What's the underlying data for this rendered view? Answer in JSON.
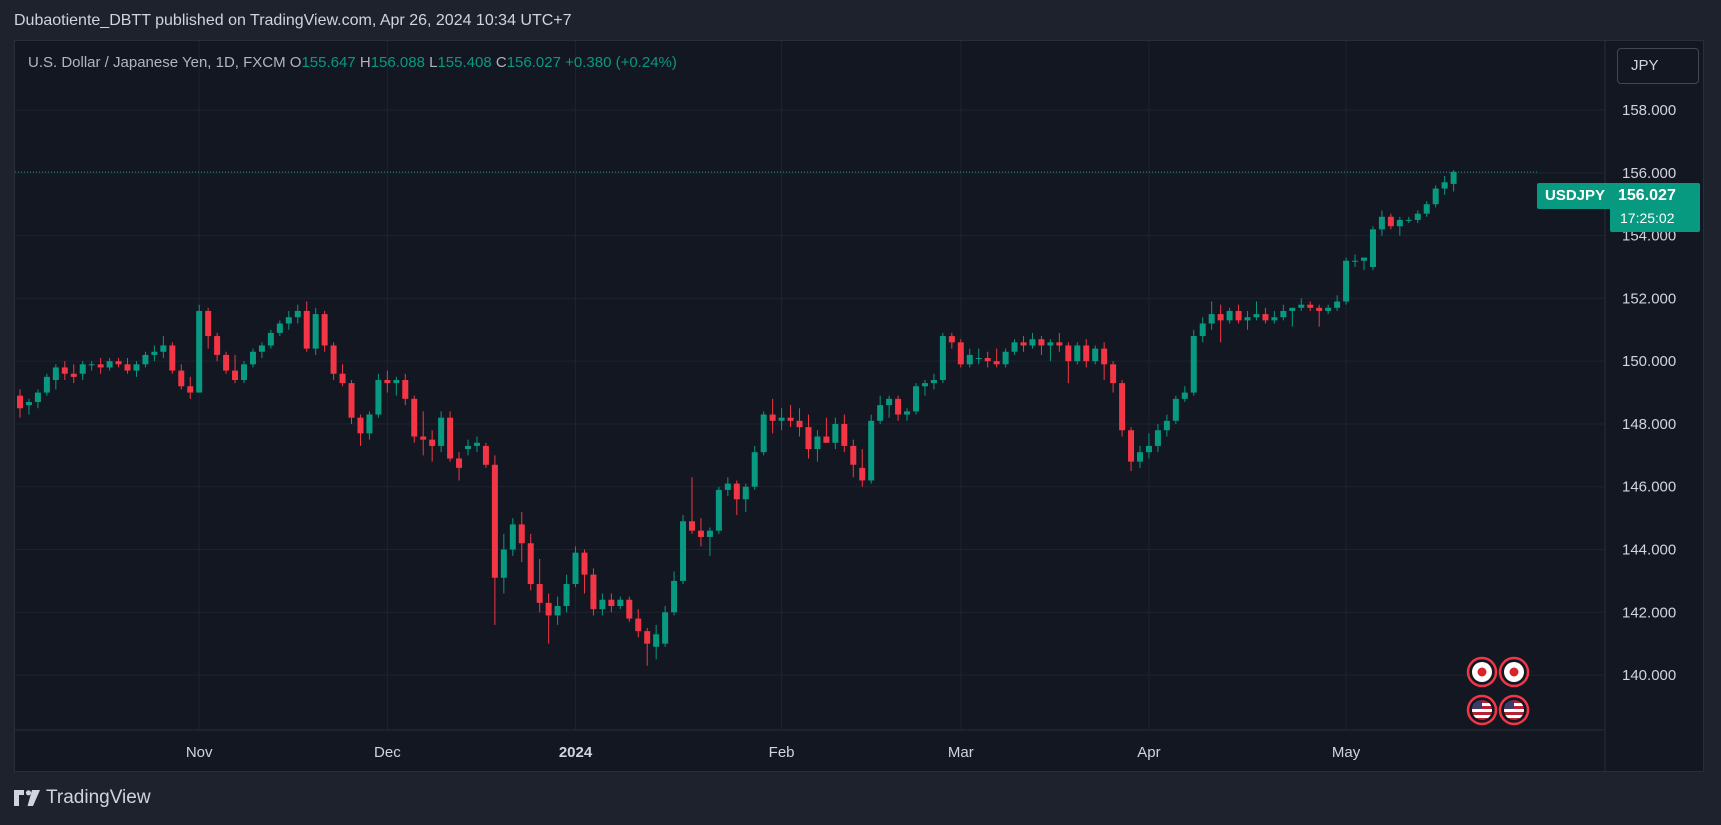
{
  "header": {
    "publisher_line": "Dubaotiente_DBTT published on TradingView.com, Apr 26, 2024 10:34 UTC+7"
  },
  "legend": {
    "symbol_desc": "U.S. Dollar / Japanese Yen, 1D, FXCM",
    "open_label": "O",
    "open": "155.647",
    "high_label": "H",
    "high": "156.088",
    "low_label": "L",
    "low": "155.408",
    "close_label": "C",
    "close": "156.027",
    "change": "+0.380 (+0.24%)"
  },
  "currency_button": "JPY",
  "price_tag": {
    "symbol": "USDJPY",
    "price": "156.027",
    "countdown": "17:25:02"
  },
  "brand": {
    "name": "TradingView"
  },
  "colors": {
    "up": "#089981",
    "down": "#f23645",
    "background": "#131722",
    "grid": "#1f2330"
  },
  "chart_data": {
    "type": "candlestick",
    "title": "",
    "y_ticks": [
      "140.000",
      "142.000",
      "144.000",
      "146.000",
      "148.000",
      "150.000",
      "152.000",
      "154.000",
      "156.000",
      "158.000"
    ],
    "x_ticks": [
      {
        "label": "Nov",
        "bold": false,
        "index": 20
      },
      {
        "label": "Dec",
        "bold": false,
        "index": 41
      },
      {
        "label": "2024",
        "bold": true,
        "index": 62
      },
      {
        "label": "Feb",
        "bold": false,
        "index": 85
      },
      {
        "label": "Mar",
        "bold": false,
        "index": 105
      },
      {
        "label": "Apr",
        "bold": false,
        "index": 126
      },
      {
        "label": "May",
        "bold": false,
        "index": 148
      }
    ],
    "ylim": [
      138.25,
      160.2
    ],
    "last_price": 156.027,
    "event_markers": [
      "japan-flag-icon",
      "japan-flag-icon",
      "us-flag-icon",
      "us-flag-icon"
    ],
    "candles": [
      [
        148.9,
        149.1,
        148.2,
        148.5
      ],
      [
        148.6,
        148.8,
        148.3,
        148.7
      ],
      [
        148.7,
        149.1,
        148.5,
        149.0
      ],
      [
        149.0,
        149.6,
        148.9,
        149.5
      ],
      [
        149.4,
        149.9,
        149.1,
        149.8
      ],
      [
        149.8,
        150.0,
        149.4,
        149.6
      ],
      [
        149.6,
        149.9,
        149.3,
        149.5
      ],
      [
        149.6,
        150.0,
        149.4,
        149.9
      ],
      [
        149.9,
        150.0,
        149.7,
        149.9
      ],
      [
        149.9,
        150.1,
        149.6,
        149.8
      ],
      [
        149.8,
        150.1,
        149.7,
        150.0
      ],
      [
        150.0,
        150.1,
        149.8,
        149.9
      ],
      [
        149.9,
        150.1,
        149.6,
        149.7
      ],
      [
        149.7,
        150.0,
        149.5,
        149.9
      ],
      [
        149.9,
        150.3,
        149.8,
        150.2
      ],
      [
        150.2,
        150.5,
        150.0,
        150.3
      ],
      [
        150.3,
        150.8,
        150.1,
        150.5
      ],
      [
        150.5,
        150.6,
        149.6,
        149.7
      ],
      [
        149.7,
        149.9,
        149.1,
        149.2
      ],
      [
        149.2,
        149.5,
        148.8,
        149.0
      ],
      [
        149.0,
        151.8,
        149.0,
        151.6
      ],
      [
        151.6,
        151.7,
        150.4,
        150.8
      ],
      [
        150.8,
        150.9,
        150.0,
        150.2
      ],
      [
        150.2,
        150.3,
        149.6,
        149.7
      ],
      [
        149.7,
        150.2,
        149.3,
        149.4
      ],
      [
        149.4,
        150.0,
        149.3,
        149.9
      ],
      [
        149.9,
        150.4,
        149.8,
        150.3
      ],
      [
        150.3,
        150.6,
        150.1,
        150.5
      ],
      [
        150.5,
        151.0,
        150.4,
        150.9
      ],
      [
        150.9,
        151.3,
        150.8,
        151.2
      ],
      [
        151.2,
        151.6,
        151.0,
        151.4
      ],
      [
        151.4,
        151.8,
        151.2,
        151.6
      ],
      [
        151.6,
        151.9,
        150.3,
        150.4
      ],
      [
        150.4,
        151.7,
        150.2,
        151.5
      ],
      [
        151.5,
        151.6,
        150.3,
        150.5
      ],
      [
        150.5,
        150.6,
        149.4,
        149.6
      ],
      [
        149.6,
        149.9,
        149.2,
        149.3
      ],
      [
        149.3,
        149.4,
        148.0,
        148.2
      ],
      [
        148.2,
        148.3,
        147.3,
        147.7
      ],
      [
        147.7,
        148.4,
        147.5,
        148.3
      ],
      [
        148.3,
        149.6,
        148.2,
        149.4
      ],
      [
        149.4,
        149.7,
        149.0,
        149.3
      ],
      [
        149.3,
        149.5,
        148.9,
        149.4
      ],
      [
        149.4,
        149.6,
        148.6,
        148.8
      ],
      [
        148.8,
        148.9,
        147.4,
        147.6
      ],
      [
        147.6,
        148.4,
        147.0,
        147.5
      ],
      [
        147.5,
        147.8,
        146.8,
        147.3
      ],
      [
        147.3,
        148.4,
        147.1,
        148.2
      ],
      [
        148.2,
        148.4,
        146.8,
        146.9
      ],
      [
        146.9,
        147.1,
        146.2,
        146.6
      ],
      [
        147.2,
        147.5,
        147.0,
        147.3
      ],
      [
        147.3,
        147.6,
        147.1,
        147.4
      ],
      [
        147.3,
        147.4,
        146.6,
        146.7
      ],
      [
        146.7,
        147.0,
        141.6,
        143.1
      ],
      [
        143.1,
        144.5,
        142.6,
        144.0
      ],
      [
        144.0,
        145.0,
        143.8,
        144.8
      ],
      [
        144.8,
        145.2,
        143.6,
        144.2
      ],
      [
        144.2,
        144.5,
        142.7,
        142.9
      ],
      [
        142.9,
        143.7,
        142.0,
        142.3
      ],
      [
        142.3,
        142.6,
        141.0,
        141.9
      ],
      [
        141.9,
        142.5,
        141.6,
        142.2
      ],
      [
        142.2,
        143.2,
        142.0,
        142.9
      ],
      [
        142.9,
        144.1,
        142.8,
        143.9
      ],
      [
        143.9,
        144.0,
        142.6,
        143.2
      ],
      [
        143.2,
        143.4,
        141.9,
        142.1
      ],
      [
        142.1,
        142.6,
        141.9,
        142.4
      ],
      [
        142.4,
        142.6,
        142.0,
        142.2
      ],
      [
        142.2,
        142.5,
        142.1,
        142.4
      ],
      [
        142.4,
        142.5,
        141.7,
        141.8
      ],
      [
        141.8,
        142.1,
        141.2,
        141.4
      ],
      [
        141.4,
        141.5,
        140.3,
        141.0
      ],
      [
        140.9,
        141.6,
        140.5,
        141.3
      ],
      [
        141.0,
        142.2,
        140.9,
        142.0
      ],
      [
        142.0,
        143.3,
        141.9,
        143.0
      ],
      [
        143.0,
        145.1,
        142.9,
        144.9
      ],
      [
        144.9,
        146.3,
        144.5,
        144.6
      ],
      [
        144.6,
        145.0,
        144.1,
        144.4
      ],
      [
        144.4,
        144.7,
        143.8,
        144.6
      ],
      [
        144.6,
        146.0,
        144.5,
        145.9
      ],
      [
        145.9,
        146.3,
        145.7,
        146.1
      ],
      [
        146.1,
        146.2,
        145.1,
        145.6
      ],
      [
        145.6,
        146.1,
        145.2,
        146.0
      ],
      [
        146.0,
        147.3,
        145.9,
        147.1
      ],
      [
        147.1,
        148.4,
        147.0,
        148.3
      ],
      [
        148.3,
        148.8,
        147.7,
        148.1
      ],
      [
        148.1,
        148.5,
        147.8,
        148.2
      ],
      [
        148.2,
        148.6,
        147.9,
        148.1
      ],
      [
        148.1,
        148.5,
        147.6,
        147.9
      ],
      [
        147.9,
        148.3,
        146.9,
        147.2
      ],
      [
        147.2,
        147.8,
        146.8,
        147.6
      ],
      [
        147.6,
        148.2,
        147.4,
        147.4
      ],
      [
        147.4,
        148.2,
        147.2,
        148.0
      ],
      [
        148.0,
        148.3,
        147.1,
        147.3
      ],
      [
        147.3,
        147.5,
        146.3,
        146.7
      ],
      [
        146.6,
        147.2,
        146.0,
        146.2
      ],
      [
        146.2,
        148.3,
        146.1,
        148.1
      ],
      [
        148.1,
        148.9,
        148.0,
        148.6
      ],
      [
        148.6,
        148.9,
        148.2,
        148.8
      ],
      [
        148.8,
        148.9,
        148.1,
        148.3
      ],
      [
        148.3,
        148.5,
        148.1,
        148.4
      ],
      [
        148.4,
        149.3,
        148.3,
        149.2
      ],
      [
        149.2,
        149.4,
        148.9,
        149.3
      ],
      [
        149.3,
        149.6,
        149.1,
        149.4
      ],
      [
        149.4,
        150.9,
        149.3,
        150.8
      ],
      [
        150.8,
        150.9,
        150.4,
        150.6
      ],
      [
        150.6,
        150.7,
        149.8,
        149.9
      ],
      [
        149.9,
        150.4,
        149.8,
        150.2
      ],
      [
        150.1,
        150.4,
        149.9,
        150.1
      ],
      [
        150.1,
        150.3,
        149.8,
        150.0
      ],
      [
        150.0,
        150.4,
        149.8,
        149.9
      ],
      [
        149.9,
        150.4,
        149.8,
        150.3
      ],
      [
        150.3,
        150.7,
        150.2,
        150.6
      ],
      [
        150.6,
        150.8,
        150.3,
        150.5
      ],
      [
        150.5,
        150.9,
        150.4,
        150.7
      ],
      [
        150.7,
        150.8,
        150.2,
        150.5
      ],
      [
        150.5,
        150.7,
        150.0,
        150.6
      ],
      [
        150.6,
        150.9,
        150.3,
        150.5
      ],
      [
        150.5,
        150.6,
        149.3,
        150.0
      ],
      [
        150.0,
        150.6,
        149.9,
        150.5
      ],
      [
        150.5,
        150.7,
        149.8,
        150.0
      ],
      [
        150.0,
        150.5,
        149.9,
        150.4
      ],
      [
        150.4,
        150.6,
        149.4,
        149.9
      ],
      [
        149.9,
        150.0,
        149.0,
        149.3
      ],
      [
        149.3,
        149.4,
        147.6,
        147.8
      ],
      [
        147.8,
        147.9,
        146.5,
        146.8
      ],
      [
        146.8,
        147.3,
        146.6,
        147.1
      ],
      [
        147.1,
        147.7,
        146.9,
        147.3
      ],
      [
        147.3,
        148.0,
        147.1,
        147.8
      ],
      [
        147.8,
        148.3,
        147.6,
        148.1
      ],
      [
        148.1,
        148.9,
        148.0,
        148.8
      ],
      [
        148.8,
        149.2,
        148.7,
        149.0
      ],
      [
        149.0,
        151.0,
        148.9,
        150.8
      ],
      [
        150.8,
        151.4,
        150.6,
        151.2
      ],
      [
        151.2,
        151.9,
        151.0,
        151.5
      ],
      [
        151.5,
        151.8,
        150.6,
        151.3
      ],
      [
        151.3,
        151.7,
        151.2,
        151.6
      ],
      [
        151.6,
        151.8,
        151.2,
        151.3
      ],
      [
        151.3,
        151.6,
        151.0,
        151.4
      ],
      [
        151.4,
        151.9,
        151.3,
        151.5
      ],
      [
        151.5,
        151.7,
        151.2,
        151.3
      ],
      [
        151.3,
        151.6,
        151.2,
        151.4
      ],
      [
        151.4,
        151.8,
        151.3,
        151.6
      ],
      [
        151.6,
        151.7,
        151.1,
        151.7
      ],
      [
        151.7,
        152.0,
        151.6,
        151.8
      ],
      [
        151.8,
        151.9,
        151.6,
        151.7
      ],
      [
        151.7,
        151.8,
        151.1,
        151.6
      ],
      [
        151.6,
        151.8,
        151.5,
        151.7
      ],
      [
        151.7,
        152.1,
        151.6,
        151.9
      ],
      [
        151.9,
        153.3,
        151.8,
        153.2
      ],
      [
        153.2,
        153.4,
        153.0,
        153.2
      ],
      [
        153.2,
        153.3,
        152.9,
        153.3
      ],
      [
        153.0,
        154.3,
        152.9,
        154.2
      ],
      [
        154.2,
        154.8,
        154.0,
        154.6
      ],
      [
        154.6,
        154.7,
        154.2,
        154.3
      ],
      [
        154.3,
        154.6,
        154.0,
        154.5
      ],
      [
        154.5,
        154.6,
        154.4,
        154.5
      ],
      [
        154.5,
        154.8,
        154.4,
        154.7
      ],
      [
        154.7,
        155.1,
        154.6,
        155.0
      ],
      [
        155.0,
        155.6,
        154.9,
        155.5
      ],
      [
        155.5,
        155.9,
        155.3,
        155.7
      ],
      [
        155.647,
        156.088,
        155.408,
        156.027
      ]
    ]
  }
}
